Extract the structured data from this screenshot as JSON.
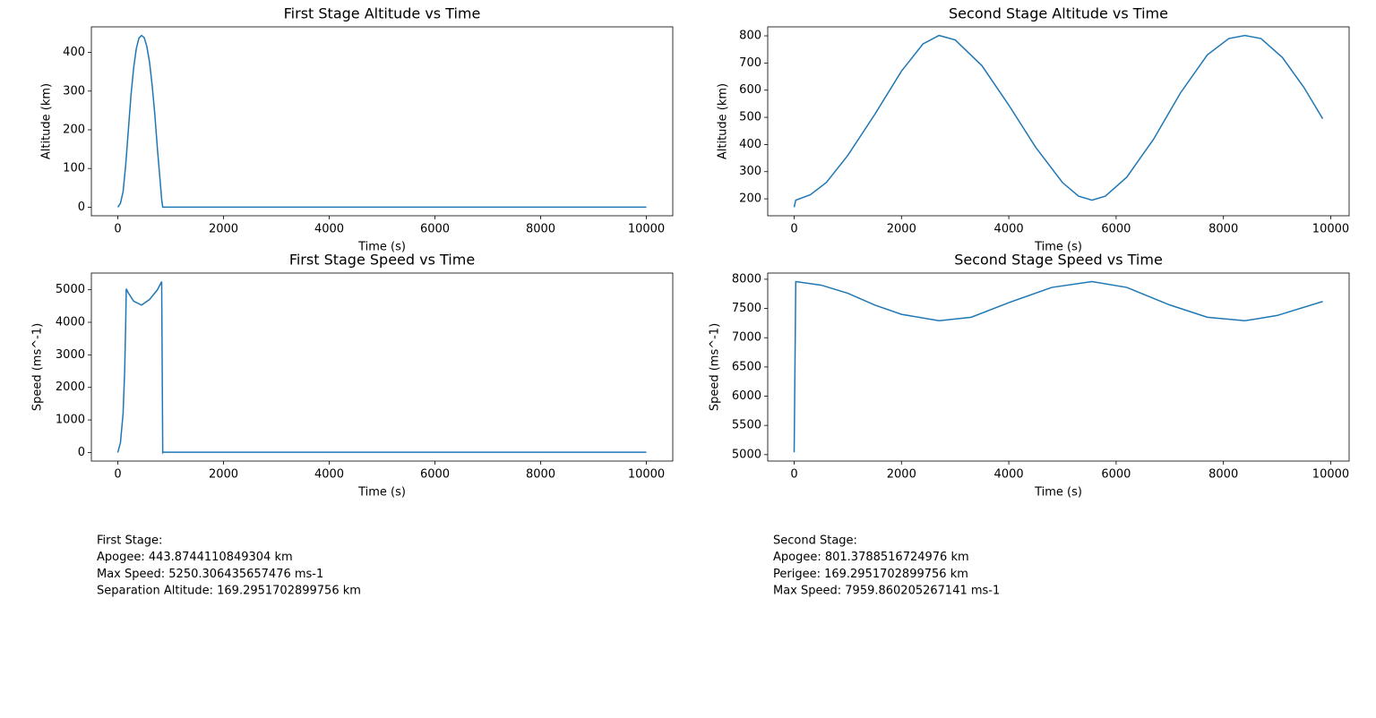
{
  "chart_data": [
    {
      "type": "line",
      "title": "First Stage Altitude vs Time",
      "x_label": "Time (s)",
      "y_label": "Altitude (km)",
      "x": [
        0,
        50,
        100,
        150,
        200,
        250,
        300,
        350,
        400,
        450,
        500,
        550,
        600,
        650,
        700,
        750,
        800,
        830,
        850,
        10000
      ],
      "values": [
        0,
        10,
        40,
        110,
        200,
        290,
        360,
        410,
        437,
        443.87,
        438,
        415,
        375,
        315,
        240,
        150,
        70,
        20,
        0,
        0
      ],
      "color": "#1f77b4",
      "xlim": [
        -500,
        10500
      ],
      "ylim": [
        -22.19,
        466.07
      ],
      "xticks": [
        0,
        2000,
        4000,
        6000,
        8000,
        10000
      ],
      "yticks": [
        0,
        100,
        200,
        300,
        400
      ]
    },
    {
      "type": "line",
      "title": "Second Stage Altitude vs Time",
      "x_label": "Time (s)",
      "y_label": "Altitude (km)",
      "x": [
        0,
        30,
        300,
        600,
        1000,
        1500,
        2000,
        2400,
        2700,
        3000,
        3500,
        4000,
        4500,
        5000,
        5300,
        5550,
        5800,
        6200,
        6700,
        7200,
        7700,
        8100,
        8400,
        8700,
        9100,
        9500,
        9850
      ],
      "values": [
        169.3,
        195,
        215,
        260,
        360,
        510,
        670,
        770,
        801.38,
        785,
        690,
        545,
        390,
        260,
        210,
        195,
        210,
        280,
        420,
        590,
        730,
        790,
        801.38,
        790,
        720,
        610,
        495
      ],
      "color": "#1f77b4",
      "xlim": [
        -492.5,
        10342.5
      ],
      "ylim": [
        137.7,
        833
      ],
      "xticks": [
        0,
        2000,
        4000,
        6000,
        8000,
        10000
      ],
      "yticks": [
        200,
        300,
        400,
        500,
        600,
        700,
        800
      ]
    },
    {
      "type": "line",
      "title": "First Stage Speed vs Time",
      "x_label": "Time (s)",
      "y_label": "Speed (ms^-1)",
      "x": [
        0,
        50,
        100,
        130,
        150,
        160,
        200,
        300,
        450,
        600,
        750,
        830,
        850,
        855,
        10000
      ],
      "values": [
        0,
        300,
        1200,
        2500,
        4000,
        5030,
        4900,
        4650,
        4530,
        4700,
        5000,
        5250.31,
        0,
        10,
        10
      ],
      "color": "#1f77b4",
      "xlim": [
        -500,
        10500
      ],
      "ylim": [
        -262.5,
        5512.8
      ],
      "xticks": [
        0,
        2000,
        4000,
        6000,
        8000,
        10000
      ],
      "yticks": [
        0,
        1000,
        2000,
        3000,
        4000,
        5000
      ]
    },
    {
      "type": "line",
      "title": "Second Stage Speed vs Time",
      "x_label": "Time (s)",
      "y_label": "Speed (ms^-1)",
      "x": [
        0,
        30,
        500,
        1000,
        1500,
        2000,
        2700,
        3300,
        4000,
        4800,
        5550,
        6200,
        7000,
        7700,
        8400,
        9000,
        9850
      ],
      "values": [
        5040,
        7959.86,
        7900,
        7760,
        7560,
        7400,
        7290,
        7350,
        7600,
        7860,
        7959.86,
        7860,
        7560,
        7350,
        7290,
        7380,
        7620
      ],
      "color": "#1f77b4",
      "xlim": [
        -492.5,
        10342.5
      ],
      "ylim": [
        4890,
        8106
      ],
      "xticks": [
        0,
        2000,
        4000,
        6000,
        8000,
        10000
      ],
      "yticks": [
        5000,
        5500,
        6000,
        6500,
        7000,
        7500,
        8000
      ]
    }
  ],
  "summaries": [
    {
      "lines": [
        "First Stage:",
        "Apogee: 443.8744110849304 km",
        "Max Speed: 5250.306435657476 ms-1",
        "Separation Altitude: 169.2951702899756 km"
      ]
    },
    {
      "lines": [
        "Second Stage:",
        "Apogee: 801.3788516724976 km",
        "Perigee: 169.2951702899756 km",
        "Max Speed: 7959.860205267141 ms-1"
      ]
    }
  ]
}
